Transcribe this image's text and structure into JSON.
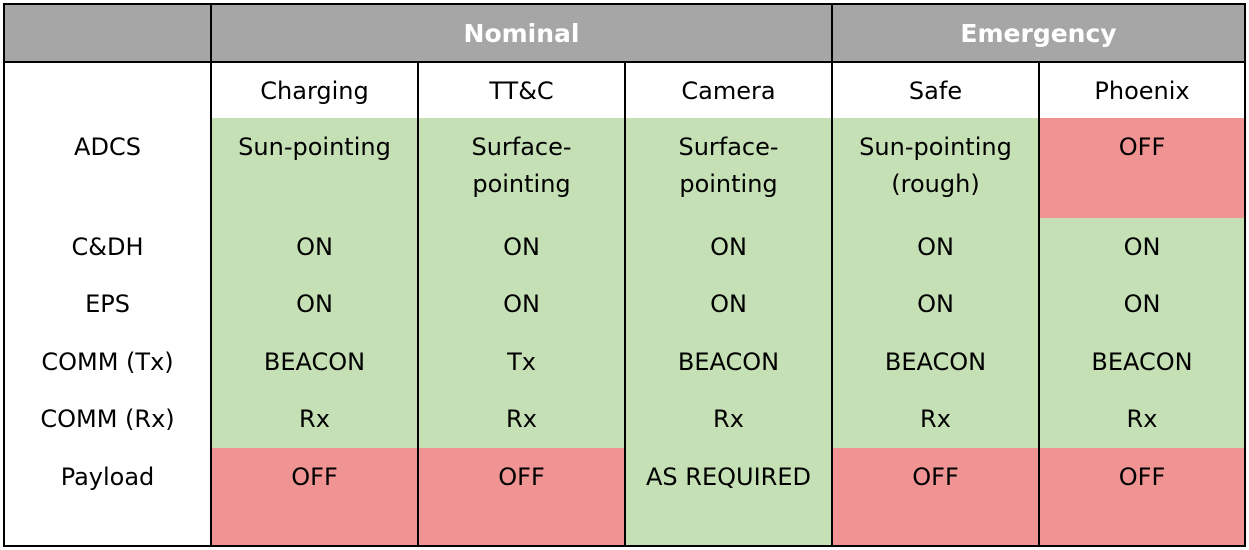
{
  "table": {
    "header": {
      "corner": "",
      "groups": [
        {
          "label": "Nominal",
          "state": "group"
        },
        {
          "label": "Emergency",
          "state": "group"
        }
      ]
    },
    "modes": [
      "Charging",
      "TT&C",
      "Camera",
      "Safe",
      "Phoenix"
    ],
    "rows": [
      {
        "label": "ADCS",
        "cells": [
          {
            "lines": [
              "Sun-pointing"
            ],
            "status": "on"
          },
          {
            "lines": [
              "Surface-",
              "pointing"
            ],
            "status": "on"
          },
          {
            "lines": [
              "Surface-",
              "pointing"
            ],
            "status": "on"
          },
          {
            "lines": [
              "Sun-pointing",
              "(rough)"
            ],
            "status": "on"
          },
          {
            "lines": [
              "OFF"
            ],
            "status": "off"
          }
        ]
      },
      {
        "label": "C&DH",
        "cells": [
          {
            "lines": [
              "ON"
            ],
            "status": "on"
          },
          {
            "lines": [
              "ON"
            ],
            "status": "on"
          },
          {
            "lines": [
              "ON"
            ],
            "status": "on"
          },
          {
            "lines": [
              "ON"
            ],
            "status": "on"
          },
          {
            "lines": [
              "ON"
            ],
            "status": "on"
          }
        ]
      },
      {
        "label": "EPS",
        "cells": [
          {
            "lines": [
              "ON"
            ],
            "status": "on"
          },
          {
            "lines": [
              "ON"
            ],
            "status": "on"
          },
          {
            "lines": [
              "ON"
            ],
            "status": "on"
          },
          {
            "lines": [
              "ON"
            ],
            "status": "on"
          },
          {
            "lines": [
              "ON"
            ],
            "status": "on"
          }
        ]
      },
      {
        "label": "COMM (Tx)",
        "cells": [
          {
            "lines": [
              "BEACON"
            ],
            "status": "on"
          },
          {
            "lines": [
              "Tx"
            ],
            "status": "on"
          },
          {
            "lines": [
              "BEACON"
            ],
            "status": "on"
          },
          {
            "lines": [
              "BEACON"
            ],
            "status": "on"
          },
          {
            "lines": [
              "BEACON"
            ],
            "status": "on"
          }
        ]
      },
      {
        "label": "COMM (Rx)",
        "cells": [
          {
            "lines": [
              "Rx"
            ],
            "status": "on"
          },
          {
            "lines": [
              "Rx"
            ],
            "status": "on"
          },
          {
            "lines": [
              "Rx"
            ],
            "status": "on"
          },
          {
            "lines": [
              "Rx"
            ],
            "status": "on"
          },
          {
            "lines": [
              "Rx"
            ],
            "status": "on"
          }
        ]
      },
      {
        "label": "Payload",
        "cells": [
          {
            "lines": [
              "OFF"
            ],
            "status": "off"
          },
          {
            "lines": [
              "OFF"
            ],
            "status": "off"
          },
          {
            "lines": [
              "AS REQUIRED"
            ],
            "status": "on"
          },
          {
            "lines": [
              "OFF"
            ],
            "status": "off"
          },
          {
            "lines": [
              "OFF"
            ],
            "status": "off"
          }
        ]
      }
    ]
  },
  "colors": {
    "on": "#c5e0b4",
    "off": "#f09393",
    "header_bg": "#a6a6a6",
    "header_text": "#ffffff",
    "border": "#000000"
  }
}
